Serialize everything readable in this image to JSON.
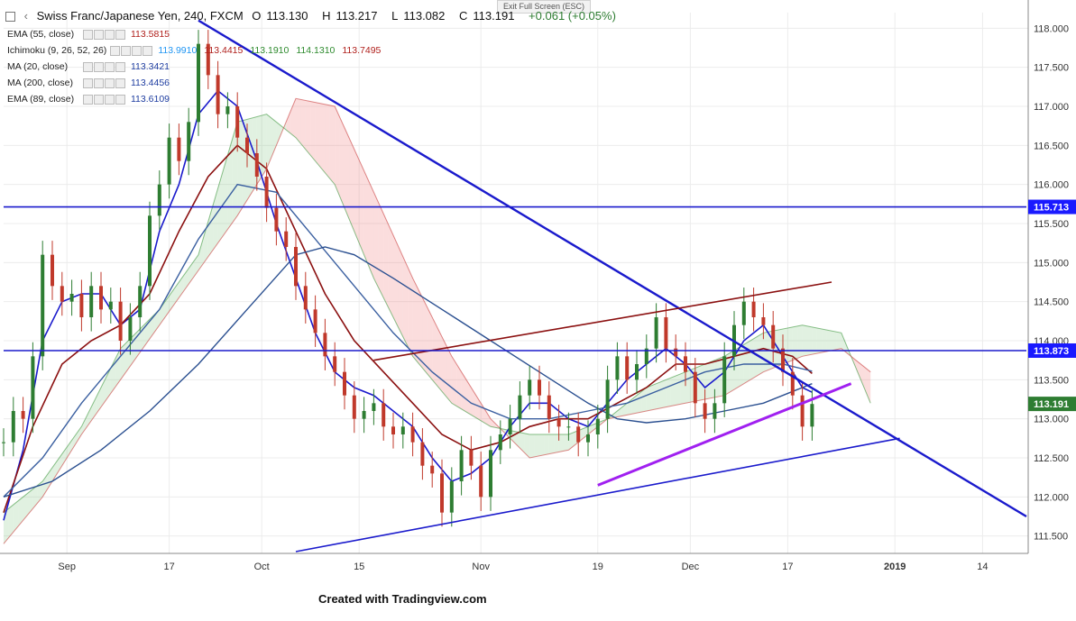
{
  "header": {
    "symbol": "Swiss Franc/Japanese Yen, 240, FXCM",
    "open_label": "O",
    "open": "113.130",
    "high_label": "H",
    "high": "113.217",
    "low_label": "L",
    "low": "113.082",
    "close_label": "C",
    "close": "113.191",
    "change": "+0.061 (+0.05%)"
  },
  "exit_fullscreen": "Exit Full Screen (ESC)",
  "indicators": [
    {
      "name": "EMA (55, close)",
      "values": [
        "113.5815"
      ],
      "colors": [
        "#b0201c"
      ]
    },
    {
      "name": "Ichimoku (9, 26, 52, 26)",
      "values": [
        "113.9910",
        "113.4415",
        "113.1910",
        "114.1310",
        "113.7495"
      ],
      "colors": [
        "#2196f3",
        "#b0201c",
        "#2e8b2e",
        "#2e8b2e",
        "#b0201c"
      ]
    },
    {
      "name": "MA (20, close)",
      "values": [
        "113.3421"
      ],
      "colors": [
        "#1e3da0"
      ]
    },
    {
      "name": "MA (200, close)",
      "values": [
        "113.4456"
      ],
      "colors": [
        "#1e3da0"
      ]
    },
    {
      "name": "EMA (89, close)",
      "values": [
        "113.6109"
      ],
      "colors": [
        "#1e3da0"
      ]
    }
  ],
  "footer": "Created with Tradingview.com",
  "chart_data": {
    "type": "line",
    "title": "Swiss Franc/Japanese Yen, 240, FXCM",
    "xlabel": "",
    "ylabel": "",
    "ylim": [
      111.3,
      118.2
    ],
    "xlim": [
      0,
      105
    ],
    "y_ticks": [
      "111.500",
      "112.000",
      "112.500",
      "113.000",
      "113.500",
      "114.000",
      "114.500",
      "115.000",
      "115.500",
      "116.000",
      "116.500",
      "117.000",
      "117.500",
      "118.000"
    ],
    "x_ticks": [
      {
        "label": "Sep",
        "x": 6.5
      },
      {
        "label": "17",
        "x": 17
      },
      {
        "label": "Oct",
        "x": 26.5
      },
      {
        "label": "15",
        "x": 36.5
      },
      {
        "label": "Nov",
        "x": 49
      },
      {
        "label": "19",
        "x": 61
      },
      {
        "label": "Dec",
        "x": 70.5
      },
      {
        "label": "17",
        "x": 80.5
      },
      {
        "label": "2019",
        "x": 91.5
      },
      {
        "label": "14",
        "x": 100.5
      }
    ],
    "price_labels": [
      {
        "value": "115.713",
        "y": 115.713,
        "color": "#1a1aff"
      },
      {
        "value": "113.873",
        "y": 113.873,
        "color": "#1a1aff"
      },
      {
        "value": "113.191",
        "y": 113.191,
        "color": "#2e7d32"
      }
    ],
    "price": [
      {
        "x": 0,
        "y": 112.7
      },
      {
        "x": 1,
        "y": 113.1
      },
      {
        "x": 2,
        "y": 113.0
      },
      {
        "x": 3,
        "y": 113.8
      },
      {
        "x": 4,
        "y": 115.1
      },
      {
        "x": 5,
        "y": 114.7
      },
      {
        "x": 6,
        "y": 114.5
      },
      {
        "x": 7,
        "y": 114.6
      },
      {
        "x": 8,
        "y": 114.3
      },
      {
        "x": 9,
        "y": 114.7
      },
      {
        "x": 10,
        "y": 114.4
      },
      {
        "x": 11,
        "y": 114.5
      },
      {
        "x": 12,
        "y": 114.0
      },
      {
        "x": 13,
        "y": 114.3
      },
      {
        "x": 14,
        "y": 114.7
      },
      {
        "x": 15,
        "y": 115.6
      },
      {
        "x": 16,
        "y": 116.0
      },
      {
        "x": 17,
        "y": 116.6
      },
      {
        "x": 18,
        "y": 116.3
      },
      {
        "x": 19,
        "y": 116.8
      },
      {
        "x": 20,
        "y": 117.8
      },
      {
        "x": 21,
        "y": 117.4
      },
      {
        "x": 22,
        "y": 116.9
      },
      {
        "x": 23,
        "y": 117.0
      },
      {
        "x": 24,
        "y": 116.6
      },
      {
        "x": 25,
        "y": 116.4
      },
      {
        "x": 26,
        "y": 116.1
      },
      {
        "x": 27,
        "y": 115.7
      },
      {
        "x": 28,
        "y": 115.4
      },
      {
        "x": 29,
        "y": 115.2
      },
      {
        "x": 30,
        "y": 114.7
      },
      {
        "x": 31,
        "y": 114.4
      },
      {
        "x": 32,
        "y": 114.1
      },
      {
        "x": 33,
        "y": 113.8
      },
      {
        "x": 34,
        "y": 113.6
      },
      {
        "x": 35,
        "y": 113.3
      },
      {
        "x": 36,
        "y": 113.0
      },
      {
        "x": 37,
        "y": 113.1
      },
      {
        "x": 38,
        "y": 113.2
      },
      {
        "x": 39,
        "y": 112.9
      },
      {
        "x": 40,
        "y": 112.8
      },
      {
        "x": 41,
        "y": 112.9
      },
      {
        "x": 42,
        "y": 112.7
      },
      {
        "x": 43,
        "y": 112.4
      },
      {
        "x": 44,
        "y": 112.3
      },
      {
        "x": 45,
        "y": 111.8
      },
      {
        "x": 46,
        "y": 112.2
      },
      {
        "x": 47,
        "y": 112.6
      },
      {
        "x": 48,
        "y": 112.4
      },
      {
        "x": 49,
        "y": 112.0
      },
      {
        "x": 50,
        "y": 112.6
      },
      {
        "x": 51,
        "y": 112.8
      },
      {
        "x": 52,
        "y": 113.0
      },
      {
        "x": 53,
        "y": 113.3
      },
      {
        "x": 54,
        "y": 113.5
      },
      {
        "x": 55,
        "y": 113.3
      },
      {
        "x": 56,
        "y": 113.0
      },
      {
        "x": 57,
        "y": 112.9
      },
      {
        "x": 58,
        "y": 112.9
      },
      {
        "x": 59,
        "y": 112.7
      },
      {
        "x": 60,
        "y": 112.8
      },
      {
        "x": 61,
        "y": 113.0
      },
      {
        "x": 62,
        "y": 113.5
      },
      {
        "x": 63,
        "y": 113.8
      },
      {
        "x": 64,
        "y": 113.5
      },
      {
        "x": 65,
        "y": 113.7
      },
      {
        "x": 66,
        "y": 113.9
      },
      {
        "x": 67,
        "y": 114.3
      },
      {
        "x": 68,
        "y": 113.9
      },
      {
        "x": 69,
        "y": 113.8
      },
      {
        "x": 70,
        "y": 113.6
      },
      {
        "x": 71,
        "y": 113.2
      },
      {
        "x": 72,
        "y": 113.0
      },
      {
        "x": 73,
        "y": 113.2
      },
      {
        "x": 74,
        "y": 113.8
      },
      {
        "x": 75,
        "y": 114.2
      },
      {
        "x": 76,
        "y": 114.5
      },
      {
        "x": 77,
        "y": 114.3
      },
      {
        "x": 78,
        "y": 114.2
      },
      {
        "x": 79,
        "y": 113.9
      },
      {
        "x": 80,
        "y": 113.6
      },
      {
        "x": 81,
        "y": 113.3
      },
      {
        "x": 82,
        "y": 112.9
      },
      {
        "x": 83,
        "y": 113.19
      }
    ],
    "series": [
      {
        "name": "MA (20, close)",
        "color": "#1a1acc",
        "width": 1.6,
        "points": [
          {
            "x": 0,
            "y": 111.7
          },
          {
            "x": 2,
            "y": 112.6
          },
          {
            "x": 4,
            "y": 114.0
          },
          {
            "x": 6,
            "y": 114.5
          },
          {
            "x": 8,
            "y": 114.6
          },
          {
            "x": 10,
            "y": 114.6
          },
          {
            "x": 12,
            "y": 114.2
          },
          {
            "x": 14,
            "y": 114.4
          },
          {
            "x": 16,
            "y": 115.4
          },
          {
            "x": 18,
            "y": 116.0
          },
          {
            "x": 20,
            "y": 116.9
          },
          {
            "x": 22,
            "y": 117.2
          },
          {
            "x": 24,
            "y": 117.0
          },
          {
            "x": 26,
            "y": 116.3
          },
          {
            "x": 28,
            "y": 115.5
          },
          {
            "x": 30,
            "y": 114.8
          },
          {
            "x": 32,
            "y": 114.1
          },
          {
            "x": 34,
            "y": 113.6
          },
          {
            "x": 36,
            "y": 113.4
          },
          {
            "x": 38,
            "y": 113.3
          },
          {
            "x": 40,
            "y": 113.1
          },
          {
            "x": 42,
            "y": 112.9
          },
          {
            "x": 44,
            "y": 112.5
          },
          {
            "x": 46,
            "y": 112.2
          },
          {
            "x": 48,
            "y": 112.3
          },
          {
            "x": 50,
            "y": 112.5
          },
          {
            "x": 52,
            "y": 112.9
          },
          {
            "x": 54,
            "y": 113.2
          },
          {
            "x": 56,
            "y": 113.2
          },
          {
            "x": 58,
            "y": 113.0
          },
          {
            "x": 60,
            "y": 112.9
          },
          {
            "x": 62,
            "y": 113.2
          },
          {
            "x": 64,
            "y": 113.5
          },
          {
            "x": 66,
            "y": 113.7
          },
          {
            "x": 68,
            "y": 113.9
          },
          {
            "x": 70,
            "y": 113.7
          },
          {
            "x": 72,
            "y": 113.4
          },
          {
            "x": 74,
            "y": 113.6
          },
          {
            "x": 76,
            "y": 114.0
          },
          {
            "x": 78,
            "y": 114.2
          },
          {
            "x": 80,
            "y": 113.8
          },
          {
            "x": 82,
            "y": 113.4
          },
          {
            "x": 83,
            "y": 113.34
          }
        ]
      },
      {
        "name": "EMA (55, close)",
        "color": "#8b1010",
        "width": 1.6,
        "points": [
          {
            "x": 0,
            "y": 111.8
          },
          {
            "x": 3,
            "y": 112.9
          },
          {
            "x": 6,
            "y": 113.7
          },
          {
            "x": 9,
            "y": 114.0
          },
          {
            "x": 12,
            "y": 114.2
          },
          {
            "x": 15,
            "y": 114.6
          },
          {
            "x": 18,
            "y": 115.4
          },
          {
            "x": 21,
            "y": 116.1
          },
          {
            "x": 24,
            "y": 116.5
          },
          {
            "x": 27,
            "y": 116.2
          },
          {
            "x": 30,
            "y": 115.4
          },
          {
            "x": 33,
            "y": 114.6
          },
          {
            "x": 36,
            "y": 114.0
          },
          {
            "x": 39,
            "y": 113.6
          },
          {
            "x": 42,
            "y": 113.2
          },
          {
            "x": 45,
            "y": 112.8
          },
          {
            "x": 48,
            "y": 112.6
          },
          {
            "x": 51,
            "y": 112.7
          },
          {
            "x": 54,
            "y": 112.9
          },
          {
            "x": 57,
            "y": 113.0
          },
          {
            "x": 60,
            "y": 113.0
          },
          {
            "x": 63,
            "y": 113.2
          },
          {
            "x": 66,
            "y": 113.4
          },
          {
            "x": 69,
            "y": 113.7
          },
          {
            "x": 72,
            "y": 113.7
          },
          {
            "x": 75,
            "y": 113.8
          },
          {
            "x": 78,
            "y": 113.9
          },
          {
            "x": 81,
            "y": 113.8
          },
          {
            "x": 83,
            "y": 113.58
          }
        ]
      },
      {
        "name": "EMA (89, close)",
        "color": "#3a5fa0",
        "width": 1.4,
        "points": [
          {
            "x": 0,
            "y": 112.0
          },
          {
            "x": 4,
            "y": 112.5
          },
          {
            "x": 8,
            "y": 113.2
          },
          {
            "x": 12,
            "y": 113.8
          },
          {
            "x": 16,
            "y": 114.4
          },
          {
            "x": 20,
            "y": 115.3
          },
          {
            "x": 24,
            "y": 116.0
          },
          {
            "x": 28,
            "y": 115.9
          },
          {
            "x": 32,
            "y": 115.3
          },
          {
            "x": 36,
            "y": 114.7
          },
          {
            "x": 40,
            "y": 114.1
          },
          {
            "x": 44,
            "y": 113.6
          },
          {
            "x": 48,
            "y": 113.2
          },
          {
            "x": 52,
            "y": 113.0
          },
          {
            "x": 56,
            "y": 113.0
          },
          {
            "x": 60,
            "y": 113.1
          },
          {
            "x": 64,
            "y": 113.2
          },
          {
            "x": 68,
            "y": 113.4
          },
          {
            "x": 72,
            "y": 113.6
          },
          {
            "x": 76,
            "y": 113.7
          },
          {
            "x": 80,
            "y": 113.7
          },
          {
            "x": 83,
            "y": 113.61
          }
        ]
      },
      {
        "name": "MA (200, close)",
        "color": "#2a4f90",
        "width": 1.4,
        "points": [
          {
            "x": 0,
            "y": 112.0
          },
          {
            "x": 5,
            "y": 112.2
          },
          {
            "x": 10,
            "y": 112.6
          },
          {
            "x": 15,
            "y": 113.1
          },
          {
            "x": 20,
            "y": 113.7
          },
          {
            "x": 25,
            "y": 114.4
          },
          {
            "x": 30,
            "y": 115.1
          },
          {
            "x": 33,
            "y": 115.2
          },
          {
            "x": 36,
            "y": 115.1
          },
          {
            "x": 40,
            "y": 114.8
          },
          {
            "x": 45,
            "y": 114.4
          },
          {
            "x": 50,
            "y": 114.0
          },
          {
            "x": 55,
            "y": 113.6
          },
          {
            "x": 60,
            "y": 113.2
          },
          {
            "x": 63,
            "y": 113.0
          },
          {
            "x": 66,
            "y": 112.95
          },
          {
            "x": 70,
            "y": 113.0
          },
          {
            "x": 74,
            "y": 113.1
          },
          {
            "x": 78,
            "y": 113.2
          },
          {
            "x": 81,
            "y": 113.35
          },
          {
            "x": 83,
            "y": 113.45
          }
        ]
      }
    ],
    "cloud_a": [
      {
        "x": 0,
        "y": 111.8
      },
      {
        "x": 4,
        "y": 112.2
      },
      {
        "x": 8,
        "y": 112.9
      },
      {
        "x": 12,
        "y": 113.9
      },
      {
        "x": 16,
        "y": 114.4
      },
      {
        "x": 20,
        "y": 115.1
      },
      {
        "x": 24,
        "y": 116.8
      },
      {
        "x": 27,
        "y": 116.9
      },
      {
        "x": 30,
        "y": 116.6
      },
      {
        "x": 34,
        "y": 116.0
      },
      {
        "x": 38,
        "y": 114.8
      },
      {
        "x": 42,
        "y": 113.8
      },
      {
        "x": 46,
        "y": 113.2
      },
      {
        "x": 50,
        "y": 112.9
      },
      {
        "x": 54,
        "y": 112.8
      },
      {
        "x": 58,
        "y": 112.8
      },
      {
        "x": 62,
        "y": 113.0
      },
      {
        "x": 66,
        "y": 113.4
      },
      {
        "x": 70,
        "y": 113.6
      },
      {
        "x": 74,
        "y": 113.8
      },
      {
        "x": 78,
        "y": 114.1
      },
      {
        "x": 82,
        "y": 114.2
      },
      {
        "x": 86,
        "y": 114.1
      },
      {
        "x": 89,
        "y": 113.2
      }
    ],
    "cloud_b": [
      {
        "x": 0,
        "y": 111.4
      },
      {
        "x": 4,
        "y": 112.0
      },
      {
        "x": 8,
        "y": 112.8
      },
      {
        "x": 12,
        "y": 113.5
      },
      {
        "x": 16,
        "y": 114.2
      },
      {
        "x": 20,
        "y": 114.9
      },
      {
        "x": 24,
        "y": 115.6
      },
      {
        "x": 27,
        "y": 116.2
      },
      {
        "x": 30,
        "y": 117.1
      },
      {
        "x": 34,
        "y": 117.0
      },
      {
        "x": 38,
        "y": 115.9
      },
      {
        "x": 42,
        "y": 114.8
      },
      {
        "x": 46,
        "y": 113.8
      },
      {
        "x": 50,
        "y": 113.0
      },
      {
        "x": 54,
        "y": 112.5
      },
      {
        "x": 58,
        "y": 112.6
      },
      {
        "x": 62,
        "y": 113.0
      },
      {
        "x": 66,
        "y": 113.1
      },
      {
        "x": 70,
        "y": 113.2
      },
      {
        "x": 74,
        "y": 113.3
      },
      {
        "x": 78,
        "y": 113.6
      },
      {
        "x": 82,
        "y": 113.8
      },
      {
        "x": 86,
        "y": 113.9
      },
      {
        "x": 89,
        "y": 113.6
      }
    ],
    "trendlines": [
      {
        "name": "descending-trendline",
        "color": "#1a1acc",
        "width": 2.4,
        "from": {
          "x": 20,
          "y": 118.1
        },
        "to": {
          "x": 105,
          "y": 111.75
        }
      },
      {
        "name": "ascending-support-line",
        "color": "#1a1acc",
        "width": 1.6,
        "from": {
          "x": 30,
          "y": 111.3
        },
        "to": {
          "x": 92,
          "y": 112.75
        }
      },
      {
        "name": "channel-upper-line",
        "color": "#8b1010",
        "width": 1.6,
        "from": {
          "x": 38,
          "y": 113.75
        },
        "to": {
          "x": 85,
          "y": 114.75
        }
      },
      {
        "name": "purple-support-line",
        "color": "#a020f0",
        "width": 3,
        "from": {
          "x": 61,
          "y": 112.15
        },
        "to": {
          "x": 87,
          "y": 113.45
        }
      },
      {
        "name": "horizontal-resistance",
        "color": "#1a1acc",
        "width": 1.6,
        "from": {
          "x": 0,
          "y": 115.713
        },
        "to": {
          "x": 105,
          "y": 115.713
        }
      },
      {
        "name": "horizontal-support",
        "color": "#1a1acc",
        "width": 1.6,
        "from": {
          "x": 0,
          "y": 113.873
        },
        "to": {
          "x": 105,
          "y": 113.873
        }
      }
    ]
  }
}
